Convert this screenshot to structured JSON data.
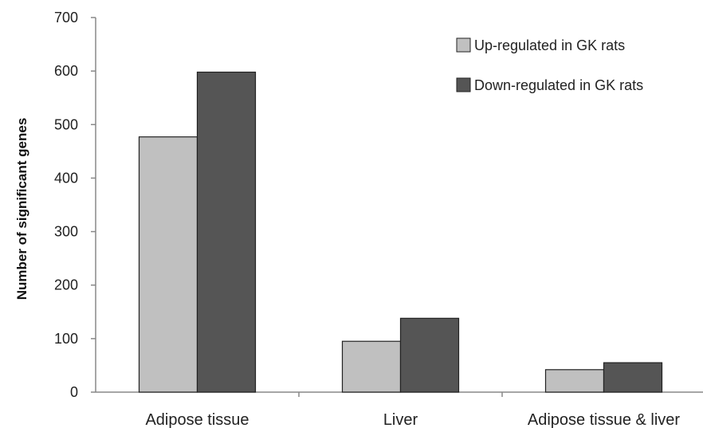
{
  "chart_data": {
    "type": "bar",
    "categories": [
      "Adipose tissue",
      "Liver",
      "Adipose tissue & liver"
    ],
    "series": [
      {
        "name": "Up-regulated in GK rats",
        "values": [
          477,
          95,
          42
        ],
        "color": "#c0c0c0"
      },
      {
        "name": "Down-regulated in GK rats",
        "values": [
          598,
          138,
          55
        ],
        "color": "#555555"
      }
    ],
    "xlabel": "",
    "ylabel": "Number of significant genes",
    "ylim": [
      0,
      700
    ],
    "yticks": [
      0,
      100,
      200,
      300,
      400,
      500,
      600,
      700
    ],
    "grid": false,
    "legend_position": "top-right"
  }
}
